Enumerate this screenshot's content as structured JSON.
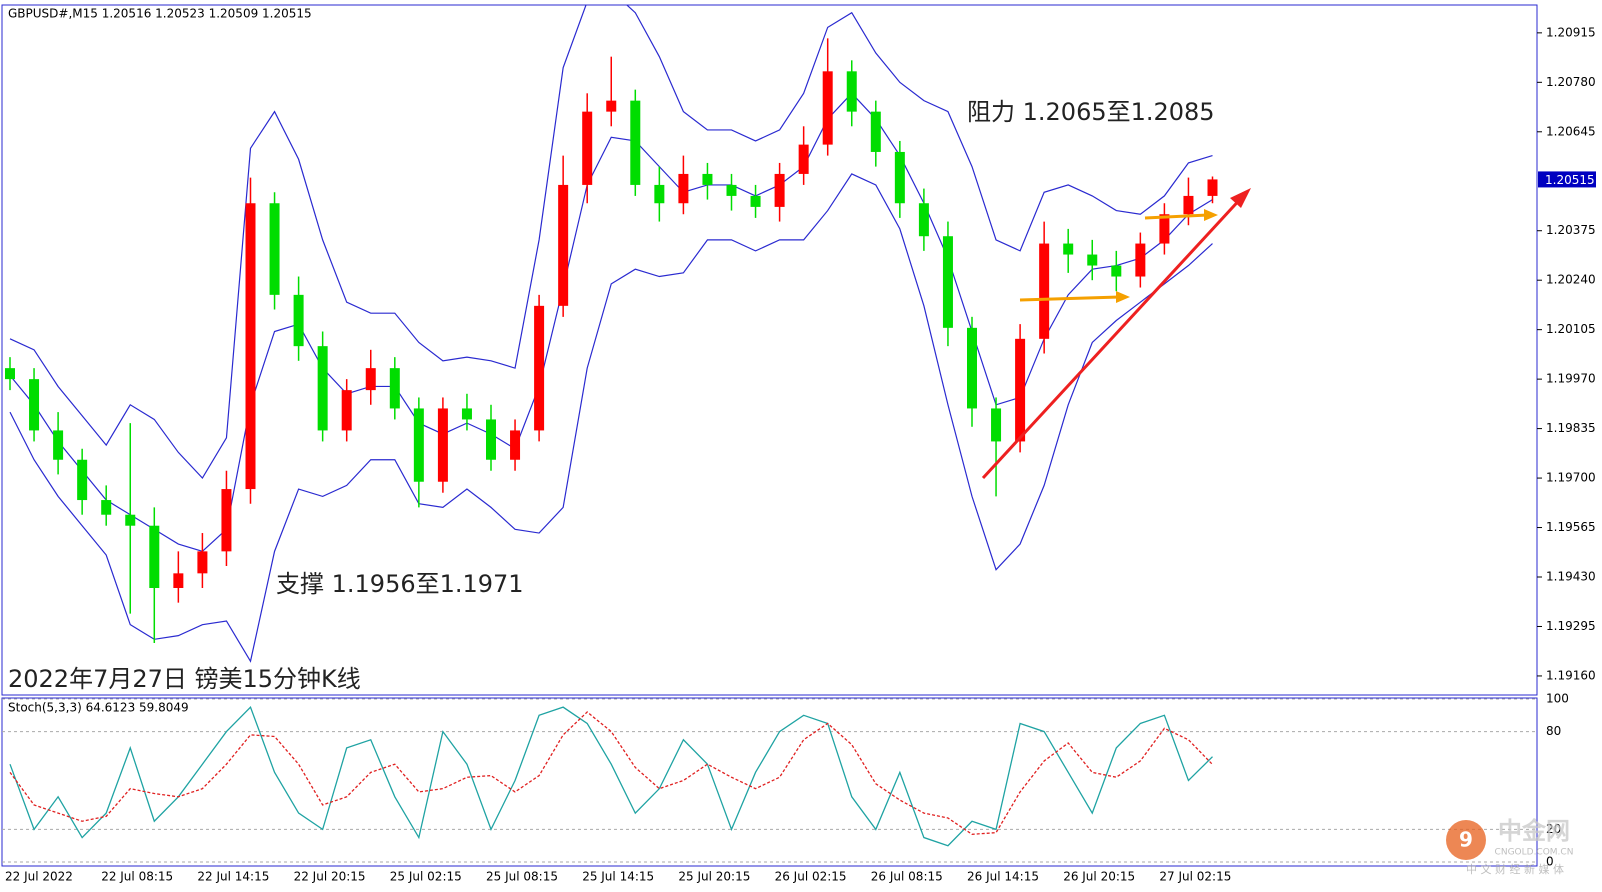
{
  "chart_data": [
    {
      "type": "candlestick",
      "title": "GBPUSD#,M15  1.20516 1.20523 1.20509 1.20515",
      "annotations": [
        "阻力 1.2065至1.2085",
        "支撑 1.1956至1.1971",
        "2022年7月27日 镑美15分钟K线"
      ],
      "categories": [
        "22 Jul 2022",
        null,
        null,
        null,
        "22 Jul 08:15",
        null,
        null,
        null,
        "22 Jul 14:15",
        null,
        null,
        null,
        "22 Jul 20:15",
        null,
        null,
        null,
        "25 Jul 02:15",
        null,
        null,
        null,
        "25 Jul 08:15",
        null,
        null,
        null,
        "25 Jul 14:15",
        null,
        null,
        null,
        "25 Jul 20:15",
        null,
        null,
        null,
        "26 Jul 02:15",
        null,
        null,
        null,
        "26 Jul 08:15",
        null,
        null,
        null,
        "26 Jul 14:15",
        null,
        null,
        null,
        "26 Jul 20:15",
        null,
        null,
        null,
        "27 Jul 02:15",
        null,
        null
      ],
      "open": [
        1.2,
        1.1997,
        1.1983,
        1.1975,
        1.1964,
        1.196,
        1.1957,
        1.194,
        1.1944,
        1.195,
        1.1967,
        1.2045,
        1.202,
        1.2006,
        1.1983,
        1.1994,
        1.2,
        1.1989,
        1.1969,
        1.1989,
        1.1986,
        1.1975,
        1.1983,
        1.2017,
        1.205,
        1.207,
        1.2073,
        1.205,
        1.2045,
        1.2053,
        1.205,
        1.2047,
        1.2044,
        1.2053,
        1.2061,
        1.2081,
        1.207,
        1.2059,
        1.2045,
        1.2036,
        1.2011,
        1.1989,
        1.198,
        1.2008,
        1.2034,
        1.2031,
        1.2028,
        1.2025,
        1.2034,
        1.2042,
        1.2047
      ],
      "high": [
        1.2003,
        1.2,
        1.1988,
        1.1978,
        1.1968,
        1.1985,
        1.1962,
        1.195,
        1.1955,
        1.1972,
        1.2052,
        1.2048,
        1.2025,
        1.201,
        1.1997,
        1.2005,
        1.2003,
        1.1992,
        1.1992,
        1.1993,
        1.199,
        1.1986,
        1.202,
        1.2058,
        1.2075,
        1.2085,
        1.2076,
        1.2055,
        1.2058,
        1.2056,
        1.2053,
        1.205,
        1.2056,
        1.2066,
        1.209,
        1.2084,
        1.2073,
        1.2062,
        1.2049,
        1.204,
        1.2014,
        1.1992,
        1.2012,
        1.204,
        1.2038,
        1.2035,
        1.2032,
        1.2037,
        1.2045,
        1.2052,
        1.20523
      ],
      "low": [
        1.1994,
        1.198,
        1.1971,
        1.196,
        1.1957,
        1.1933,
        1.1925,
        1.1936,
        1.194,
        1.1946,
        1.1963,
        1.2016,
        1.2002,
        1.198,
        1.198,
        1.199,
        1.1986,
        1.1962,
        1.1966,
        1.1983,
        1.1972,
        1.1972,
        1.198,
        1.2014,
        1.2045,
        1.2066,
        1.2047,
        1.204,
        1.2042,
        1.2046,
        1.2043,
        1.2041,
        1.204,
        1.205,
        1.2058,
        1.2066,
        1.2055,
        1.2041,
        1.2032,
        1.2006,
        1.1984,
        1.1965,
        1.1977,
        1.2004,
        1.2026,
        1.2024,
        1.2021,
        1.2022,
        1.2031,
        1.2039,
        1.2045
      ],
      "close": [
        1.1997,
        1.1983,
        1.1975,
        1.1964,
        1.196,
        1.1957,
        1.194,
        1.1944,
        1.195,
        1.1967,
        1.2045,
        1.202,
        1.2006,
        1.1983,
        1.1994,
        1.2,
        1.1989,
        1.1969,
        1.1989,
        1.1986,
        1.1975,
        1.1983,
        1.2017,
        1.205,
        1.207,
        1.2073,
        1.205,
        1.2045,
        1.2053,
        1.205,
        1.2047,
        1.2044,
        1.2053,
        1.2061,
        1.2081,
        1.207,
        1.2059,
        1.2045,
        1.2036,
        1.2011,
        1.1989,
        1.198,
        1.2008,
        1.2034,
        1.2031,
        1.2028,
        1.2025,
        1.2034,
        1.2042,
        1.2047,
        1.20515
      ],
      "up_color": "#ff0000",
      "down_color": "#00dd00",
      "bands": [
        {
          "color": "#2a2ad0",
          "values": [
            1.2008,
            1.2005,
            1.1995,
            1.1987,
            1.1979,
            1.199,
            1.1986,
            1.1977,
            1.197,
            1.1981,
            1.206,
            1.207,
            1.2057,
            1.2035,
            1.2018,
            1.2015,
            1.2015,
            1.2007,
            1.2002,
            1.2003,
            1.2002,
            1.2,
            1.2035,
            1.2082,
            1.21,
            1.2103,
            1.2097,
            1.2085,
            1.207,
            1.2065,
            1.2065,
            1.2062,
            1.2065,
            1.2075,
            1.2093,
            1.2097,
            1.2086,
            1.2078,
            1.2073,
            1.207,
            1.2055,
            1.2035,
            1.2032,
            1.2048,
            1.205,
            1.2047,
            1.2043,
            1.2042,
            1.2047,
            1.2056,
            1.2058
          ]
        },
        {
          "color": "#2a2ad0",
          "values": [
            1.1998,
            1.199,
            1.198,
            1.1972,
            1.1964,
            1.196,
            1.1956,
            1.1952,
            1.195,
            1.1956,
            1.199,
            1.201,
            1.2012,
            1.2,
            1.1993,
            1.1995,
            1.1995,
            1.1985,
            1.1982,
            1.1985,
            1.1982,
            1.1978,
            1.1995,
            1.2022,
            1.205,
            1.2063,
            1.2062,
            1.2055,
            1.2048,
            1.205,
            1.205,
            1.2047,
            1.205,
            1.2055,
            1.2068,
            1.2075,
            1.2068,
            1.2058,
            1.2045,
            1.203,
            1.201,
            1.199,
            1.1992,
            1.2008,
            1.202,
            1.2027,
            1.2028,
            1.203,
            1.2035,
            1.2042,
            1.2046
          ]
        },
        {
          "color": "#2a2ad0",
          "values": [
            1.1988,
            1.1975,
            1.1965,
            1.1957,
            1.1949,
            1.193,
            1.1926,
            1.1927,
            1.193,
            1.1931,
            1.192,
            1.195,
            1.1967,
            1.1965,
            1.1968,
            1.1975,
            1.1975,
            1.1963,
            1.1962,
            1.1967,
            1.1962,
            1.1956,
            1.1955,
            1.1962,
            1.2,
            1.2023,
            1.2027,
            1.2025,
            1.2026,
            1.2035,
            1.2035,
            1.2032,
            1.2035,
            1.2035,
            1.2043,
            1.2053,
            1.205,
            1.2038,
            1.2017,
            1.199,
            1.1965,
            1.1945,
            1.1952,
            1.1968,
            1.199,
            1.2007,
            1.2013,
            1.2018,
            1.2023,
            1.2028,
            1.2034
          ]
        }
      ],
      "last_price": 1.20515,
      "ylim": [
        1.19108,
        1.20991
      ],
      "yticks": [
        {
          "value": 1.20915,
          "label": "1.20915"
        },
        {
          "value": 1.2078,
          "label": "1.20780"
        },
        {
          "value": 1.20645,
          "label": "1.20645"
        },
        {
          "value": 1.20375,
          "label": "1.20375"
        },
        {
          "value": 1.2024,
          "label": "1.20240"
        },
        {
          "value": 1.20105,
          "label": "1.20105"
        },
        {
          "value": 1.1997,
          "label": "1.19970"
        },
        {
          "value": 1.19835,
          "label": "1.19835"
        },
        {
          "value": 1.197,
          "label": "1.19700"
        },
        {
          "value": 1.19565,
          "label": "1.19565"
        },
        {
          "value": 1.1943,
          "label": "1.19430"
        },
        {
          "value": 1.19295,
          "label": "1.19295"
        },
        {
          "value": 1.1916,
          "label": "1.19160"
        }
      ]
    },
    {
      "type": "line",
      "title": "Stoch(5,3,3) 64.6123 59.8049",
      "series": [
        {
          "color": "#1fa3a3",
          "style": "solid",
          "values": [
            60,
            20,
            40,
            15,
            30,
            70,
            25,
            40,
            60,
            80,
            95,
            55,
            30,
            20,
            70,
            75,
            40,
            15,
            80,
            60,
            20,
            50,
            90,
            95,
            85,
            60,
            30,
            45,
            75,
            60,
            20,
            55,
            80,
            90,
            85,
            40,
            20,
            55,
            15,
            10,
            25,
            20,
            85,
            80,
            55,
            30,
            70,
            85,
            90,
            50,
            64.6
          ]
        },
        {
          "color": "#e02020",
          "style": "dashed",
          "values": [
            55,
            35,
            30,
            25,
            28,
            45,
            42,
            40,
            45,
            60,
            78,
            77,
            60,
            35,
            40,
            55,
            60,
            43,
            45,
            52,
            53,
            43,
            53,
            78,
            92,
            80,
            58,
            45,
            50,
            60,
            52,
            45,
            52,
            75,
            85,
            72,
            48,
            38,
            30,
            27,
            17,
            18,
            43,
            62,
            73,
            55,
            52,
            62,
            82,
            75,
            59.8
          ]
        }
      ],
      "ylim": [
        0,
        100
      ],
      "yticks": [
        100,
        80,
        20,
        0
      ],
      "grid": true
    }
  ],
  "watermark": {
    "name": "中金网",
    "site": "CNGOLD.COM.CN",
    "slogan": "中 文 财 经 新 媒 体"
  }
}
